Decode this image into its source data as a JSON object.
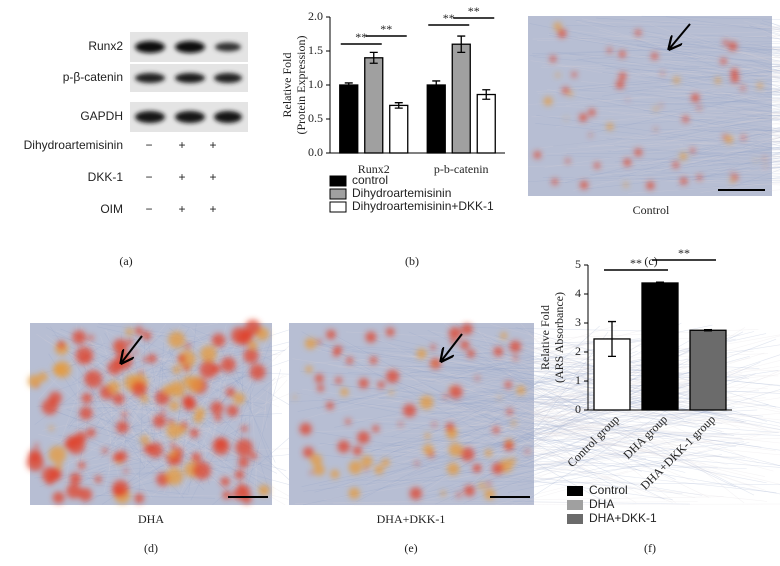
{
  "blot": {
    "bands": [
      "Runx2",
      "p-β-catenin",
      "GAPDH"
    ],
    "treatments": [
      {
        "name": "Dihydroartemisinin",
        "marks": [
          "−",
          "+",
          "+"
        ]
      },
      {
        "name": "DKK-1",
        "marks": [
          "−",
          "+",
          "+"
        ]
      },
      {
        "name": "OIM",
        "marks": [
          "−",
          "+",
          "+"
        ]
      }
    ]
  },
  "captions": {
    "c": "Control",
    "d": "DHA",
    "e": "DHA+DKK-1"
  },
  "panel_labels": [
    "(a)",
    "(b)",
    "(c)",
    "(d)",
    "(e)",
    "(f)"
  ],
  "chart_data": [
    {
      "type": "bar",
      "ylabel": [
        "Relative Fold",
        "(Protein Expression)"
      ],
      "categories": [
        "Runx2",
        "p-b-catenin"
      ],
      "series": [
        {
          "name": "control",
          "color": "#000000",
          "values": [
            1.0,
            1.0
          ],
          "errors": [
            0.03,
            0.06
          ]
        },
        {
          "name": "Dihydroartemisinin",
          "color": "#a0a0a0",
          "values": [
            1.4,
            1.6
          ],
          "errors": [
            0.08,
            0.12
          ]
        },
        {
          "name": "Dihydroartemisinin+DKK-1",
          "color": "#ffffff",
          "values": [
            0.7,
            0.86
          ],
          "errors": [
            0.04,
            0.07
          ]
        }
      ],
      "ylim": [
        0,
        2
      ],
      "yticks": [
        {
          "value": 0,
          "label": "0.0"
        },
        {
          "value": 0.5,
          "label": "0.5"
        },
        {
          "value": 1,
          "label": "1.0"
        },
        {
          "value": 1.5,
          "label": "1.5"
        },
        {
          "value": 2,
          "label": "2.0"
        }
      ],
      "annotations": [
        "**",
        "**",
        "**",
        "**"
      ]
    },
    {
      "type": "bar",
      "ylabel": [
        "Relative Fold",
        "(ARS Absorbance)"
      ],
      "categories": [
        "Control group",
        "DHA group",
        "DHA+DKK-1 group"
      ],
      "values": [
        2.45,
        4.38,
        2.75
      ],
      "errors": [
        0.6,
        0.03,
        0.02
      ],
      "colors": [
        "#ffffff",
        "#000000",
        "#6b6b6b"
      ],
      "legend": [
        {
          "name": "Control",
          "color": "#000000"
        },
        {
          "name": "DHA",
          "color": "#a0a0a0"
        },
        {
          "name": "DHA+DKK-1",
          "color": "#6b6b6b"
        }
      ],
      "ylim": [
        0,
        5
      ],
      "yticks": [
        0,
        1,
        2,
        3,
        4,
        5
      ],
      "annotations": [
        "**",
        "**"
      ]
    }
  ]
}
